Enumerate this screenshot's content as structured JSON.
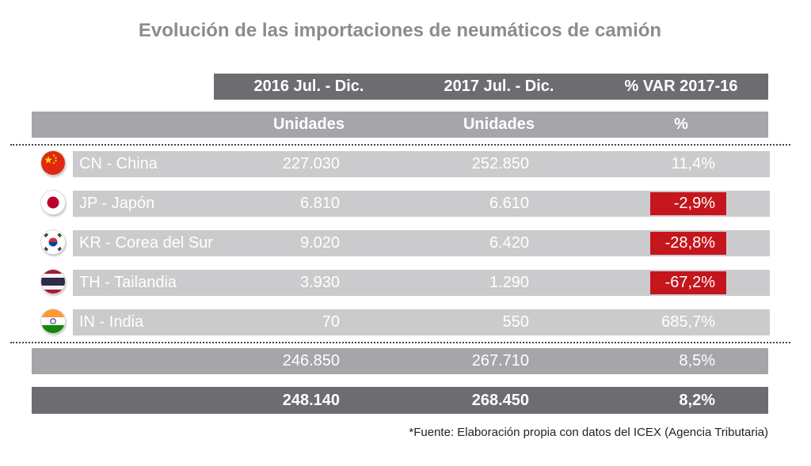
{
  "title": "Evolución de las importaciones de neumáticos de camión",
  "header": {
    "col1": "2016 Jul. - Dic.",
    "col2": "2017 Jul. - Dic.",
    "col3": "% VAR 2017-16",
    "unit1": "Unidades",
    "unit2": "Unidades",
    "unit3": "%"
  },
  "rows": [
    {
      "country": "CN - China",
      "flag": "china-flag-icon",
      "v2016": "227.030",
      "v2017": "252.850",
      "var": "11,4%",
      "negative": false
    },
    {
      "country": "JP - Japón",
      "flag": "japan-flag-icon",
      "v2016": "6.810",
      "v2017": "6.610",
      "var": "-2,9%",
      "negative": true
    },
    {
      "country": "KR - Corea del Sur",
      "flag": "south-korea-flag-icon",
      "v2016": "9.020",
      "v2017": "6.420",
      "var": "-28,8%",
      "negative": true
    },
    {
      "country": "TH - Tailandia",
      "flag": "thailand-flag-icon",
      "v2016": "3.930",
      "v2017": "1.290",
      "var": "-67,2%",
      "negative": true
    },
    {
      "country": "IN - India",
      "flag": "india-flag-icon",
      "v2016": "70",
      "v2017": "550",
      "var": "685,7%",
      "negative": false
    }
  ],
  "subtotal": {
    "v2016": "246.850",
    "v2017": "267.710",
    "var": "8,5%"
  },
  "total": {
    "v2016": "248.140",
    "v2017": "268.450",
    "var": "8,2%"
  },
  "source": "*Fuente: Elaboración propia con datos del ICEX (Agencia Tributaria)",
  "colors": {
    "header_dark": "#6d6c70",
    "header_light": "#a6a5a9",
    "row": "#cbcbce",
    "negative": "#c4161c"
  },
  "chart_data": {
    "type": "table",
    "title": "Evolución de las importaciones de neumáticos de camión",
    "columns": [
      "2016 Jul. - Dic.",
      "2017 Jul. - Dic.",
      "% VAR 2017-16"
    ],
    "units": [
      "Unidades",
      "Unidades",
      "%"
    ],
    "categories": [
      "CN - China",
      "JP - Japón",
      "KR - Corea del Sur",
      "TH - Tailandia",
      "IN - India"
    ],
    "series": [
      {
        "name": "2016 Jul. - Dic.",
        "values": [
          227030,
          6810,
          9020,
          3930,
          70
        ]
      },
      {
        "name": "2017 Jul. - Dic.",
        "values": [
          252850,
          6610,
          6420,
          1290,
          550
        ]
      },
      {
        "name": "% VAR 2017-16",
        "values": [
          11.4,
          -2.9,
          -28.8,
          -67.2,
          685.7
        ]
      }
    ],
    "subtotal": [
      246850,
      267710,
      8.5
    ],
    "total": [
      248140,
      268450,
      8.2
    ]
  }
}
